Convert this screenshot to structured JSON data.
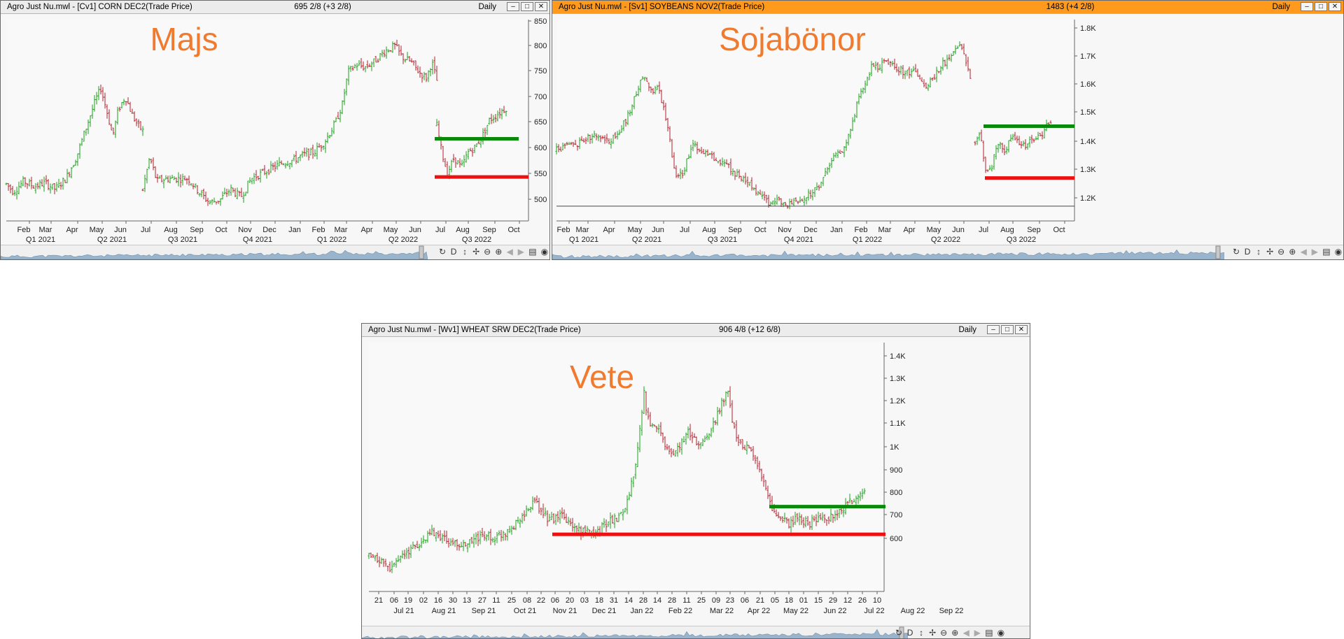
{
  "windows": [
    {
      "id": "corn",
      "active": false,
      "title": "Agro Just Nu.mwl - [Cv1] CORN DEC2(Trade Price)",
      "price": "695 2/8 (+3 2/8)",
      "period": "Daily",
      "label": "Majs",
      "y_ticks": [
        "850",
        "800",
        "750",
        "700",
        "650",
        "600",
        "550",
        "500"
      ],
      "x_months": [
        "Feb",
        "Mar",
        "Apr",
        "May",
        "Jun",
        "Jul",
        "Aug",
        "Sep",
        "Oct",
        "Nov",
        "Dec",
        "Jan",
        "Feb",
        "Mar",
        "Apr",
        "May",
        "Jun",
        "Jul",
        "Aug",
        "Sep",
        "Oct"
      ],
      "x_quarters": [
        "Q1 2021",
        "Q2 2021",
        "Q3 2021",
        "Q4 2021",
        "Q1 2022",
        "Q2 2022",
        "Q3 2022"
      ],
      "toolbar": [
        "D"
      ]
    },
    {
      "id": "soybeans",
      "active": true,
      "title": "Agro Just Nu.mwl - [Sv1] SOYBEANS NOV2(Trade Price)",
      "price": "1483 (+4 2/8)",
      "period": "Daily",
      "label": "Sojabönor",
      "y_ticks": [
        "1.8K",
        "1.7K",
        "1.6K",
        "1.5K",
        "1.4K",
        "1.3K",
        "1.2K"
      ],
      "x_months": [
        "Feb",
        "Mar",
        "Apr",
        "May",
        "Jun",
        "Jul",
        "Aug",
        "Sep",
        "Oct",
        "Nov",
        "Dec",
        "Jan",
        "Feb",
        "Mar",
        "Apr",
        "May",
        "Jun",
        "Jul",
        "Aug",
        "Sep",
        "Oct"
      ],
      "x_quarters": [
        "Q1 2021",
        "Q2 2021",
        "Q3 2021",
        "Q4 2021",
        "Q1 2022",
        "Q2 2022",
        "Q3 2022"
      ],
      "toolbar": [
        "D"
      ]
    },
    {
      "id": "wheat",
      "active": false,
      "title": "Agro Just Nu.mwl - [Wv1] WHEAT SRW DEC2(Trade Price)",
      "price": "906 4/8 (+12 6/8)",
      "period": "Daily",
      "label": "Vete",
      "y_ticks": [
        "1.4K",
        "1.3K",
        "1.2K",
        "1.1K",
        "1K",
        "900",
        "800",
        "700",
        "600"
      ],
      "x_days": [
        "21",
        "06",
        "19",
        "02",
        "16",
        "30",
        "13",
        "27",
        "11",
        "25",
        "08",
        "22",
        "06",
        "20",
        "03",
        "18",
        "31",
        "14",
        "28",
        "14",
        "28",
        "11",
        "25",
        "09",
        "23",
        "06",
        "21",
        "05",
        "18",
        "01",
        "15",
        "29",
        "12",
        "26",
        "10"
      ],
      "x_months": [
        "Jul 21",
        "Aug 21",
        "Sep 21",
        "Oct 21",
        "Nov 21",
        "Dec 21",
        "Jan 22",
        "Feb 22",
        "Mar 22",
        "Apr 22",
        "May 22",
        "Jun 22",
        "Jul 22",
        "Aug 22",
        "Sep 22"
      ],
      "toolbar": [
        "D"
      ]
    }
  ],
  "chart_data": [
    {
      "type": "ohlc",
      "title": "Majs",
      "ylim": [
        480,
        860
      ],
      "price_path": [
        [
          0,
          550
        ],
        [
          10,
          535
        ],
        [
          25,
          555
        ],
        [
          40,
          545
        ],
        [
          55,
          552
        ],
        [
          70,
          540
        ],
        [
          85,
          560
        ],
        [
          100,
          600
        ],
        [
          115,
          660
        ],
        [
          128,
          710
        ],
        [
          135,
          730
        ],
        [
          143,
          690
        ],
        [
          152,
          640
        ],
        [
          160,
          690
        ],
        [
          170,
          715
        ],
        [
          180,
          680
        ],
        [
          188,
          660
        ],
        [
          195,
          650
        ]
      ],
      "price_path_2": [
        [
          195,
          540
        ],
        [
          205,
          600
        ],
        [
          215,
          555
        ],
        [
          230,
          560
        ],
        [
          245,
          560
        ],
        [
          260,
          560
        ],
        [
          275,
          535
        ],
        [
          290,
          515
        ],
        [
          305,
          520
        ],
        [
          320,
          540
        ],
        [
          335,
          525
        ],
        [
          350,
          560
        ],
        [
          365,
          570
        ],
        [
          380,
          580
        ],
        [
          395,
          590
        ],
        [
          410,
          595
        ],
        [
          425,
          605
        ],
        [
          440,
          610
        ],
        [
          455,
          630
        ],
        [
          470,
          665
        ],
        [
          480,
          700
        ],
        [
          488,
          760
        ],
        [
          500,
          775
        ],
        [
          512,
          770
        ],
        [
          525,
          780
        ],
        [
          540,
          800
        ],
        [
          555,
          810
        ],
        [
          565,
          790
        ],
        [
          578,
          780
        ],
        [
          590,
          760
        ],
        [
          600,
          750
        ],
        [
          608,
          780
        ],
        [
          615,
          745
        ]
      ],
      "price_path_3": [
        [
          615,
          660
        ],
        [
          622,
          610
        ],
        [
          630,
          570
        ],
        [
          640,
          600
        ],
        [
          650,
          580
        ],
        [
          660,
          610
        ],
        [
          670,
          620
        ],
        [
          680,
          640
        ],
        [
          690,
          670
        ],
        [
          700,
          680
        ],
        [
          710,
          690
        ],
        [
          716,
          695
        ]
      ],
      "resistance": 635,
      "support": 563
    },
    {
      "type": "ohlc",
      "title": "Sojabönor",
      "ylim": [
        1160,
        1840
      ],
      "price_path": [
        [
          0,
          1400
        ],
        [
          15,
          1410
        ],
        [
          30,
          1420
        ],
        [
          45,
          1440
        ],
        [
          60,
          1450
        ],
        [
          75,
          1430
        ],
        [
          90,
          1460
        ],
        [
          105,
          1530
        ],
        [
          115,
          1600
        ],
        [
          125,
          1660
        ],
        [
          135,
          1600
        ],
        [
          145,
          1610
        ],
        [
          155,
          1520
        ],
        [
          163,
          1420
        ],
        [
          170,
          1300
        ],
        [
          180,
          1320
        ],
        [
          195,
          1420
        ],
        [
          210,
          1390
        ],
        [
          225,
          1370
        ],
        [
          240,
          1360
        ],
        [
          255,
          1320
        ],
        [
          270,
          1300
        ],
        [
          285,
          1260
        ],
        [
          298,
          1240
        ],
        [
          305,
          1210
        ],
        [
          315,
          1240
        ],
        [
          330,
          1210
        ],
        [
          345,
          1230
        ],
        [
          360,
          1250
        ],
        [
          375,
          1280
        ],
        [
          385,
          1330
        ],
        [
          395,
          1380
        ],
        [
          410,
          1400
        ],
        [
          420,
          1460
        ],
        [
          430,
          1560
        ],
        [
          440,
          1620
        ],
        [
          450,
          1680
        ],
        [
          460,
          1680
        ],
        [
          472,
          1700
        ],
        [
          485,
          1680
        ],
        [
          498,
          1660
        ],
        [
          510,
          1670
        ],
        [
          525,
          1610
        ],
        [
          540,
          1650
        ],
        [
          552,
          1690
        ],
        [
          565,
          1710
        ],
        [
          575,
          1760
        ],
        [
          585,
          1700
        ],
        [
          592,
          1640
        ]
      ],
      "price_path_2": [
        [
          598,
          1420
        ],
        [
          605,
          1470
        ],
        [
          612,
          1340
        ],
        [
          620,
          1330
        ],
        [
          630,
          1420
        ],
        [
          640,
          1400
        ],
        [
          650,
          1440
        ],
        [
          660,
          1430
        ],
        [
          670,
          1410
        ],
        [
          680,
          1440
        ],
        [
          690,
          1440
        ],
        [
          700,
          1480
        ],
        [
          706,
          1485
        ]
      ],
      "resistance": 1480,
      "support": 1305,
      "hline": 1210
    },
    {
      "type": "ohlc",
      "title": "Vete",
      "ylim": [
        540,
        1420
      ],
      "price_path": [
        [
          0,
          660
        ],
        [
          15,
          650
        ],
        [
          30,
          625
        ],
        [
          45,
          660
        ],
        [
          60,
          690
        ],
        [
          75,
          710
        ],
        [
          90,
          750
        ],
        [
          105,
          730
        ],
        [
          120,
          710
        ],
        [
          135,
          700
        ],
        [
          150,
          720
        ],
        [
          165,
          740
        ],
        [
          180,
          730
        ],
        [
          195,
          750
        ],
        [
          210,
          780
        ],
        [
          225,
          820
        ],
        [
          235,
          860
        ],
        [
          245,
          830
        ],
        [
          255,
          800
        ],
        [
          265,
          790
        ],
        [
          275,
          810
        ],
        [
          285,
          780
        ],
        [
          295,
          760
        ],
        [
          305,
          750
        ],
        [
          315,
          760
        ],
        [
          325,
          750
        ],
        [
          335,
          770
        ],
        [
          345,
          790
        ],
        [
          355,
          800
        ],
        [
          365,
          830
        ],
        [
          375,
          920
        ],
        [
          385,
          1050
        ],
        [
          393,
          1260
        ],
        [
          398,
          1150
        ],
        [
          405,
          1120
        ],
        [
          415,
          1100
        ],
        [
          425,
          1050
        ],
        [
          435,
          1030
        ],
        [
          445,
          1060
        ],
        [
          455,
          1100
        ],
        [
          465,
          1080
        ],
        [
          475,
          1060
        ],
        [
          485,
          1100
        ],
        [
          495,
          1150
        ],
        [
          505,
          1210
        ],
        [
          512,
          1260
        ],
        [
          520,
          1130
        ],
        [
          530,
          1060
        ],
        [
          540,
          1050
        ],
        [
          550,
          1030
        ],
        [
          560,
          960
        ],
        [
          570,
          880
        ],
        [
          580,
          810
        ],
        [
          590,
          790
        ],
        [
          600,
          780
        ],
        [
          610,
          800
        ],
        [
          620,
          790
        ],
        [
          630,
          780
        ],
        [
          640,
          800
        ],
        [
          650,
          790
        ],
        [
          660,
          810
        ],
        [
          670,
          820
        ],
        [
          680,
          840
        ],
        [
          690,
          860
        ],
        [
          700,
          880
        ],
        [
          708,
          906
        ]
      ],
      "resistance": 840,
      "support": 742
    }
  ]
}
